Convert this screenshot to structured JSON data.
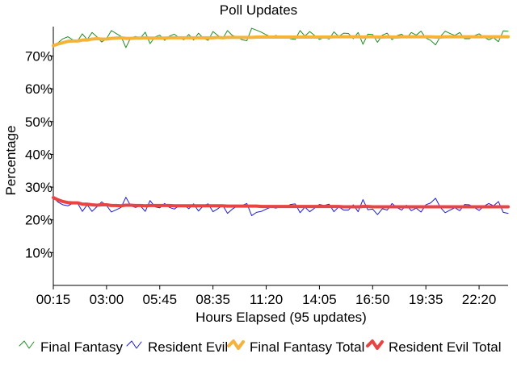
{
  "chart_data": {
    "type": "line",
    "title": "Poll Updates",
    "xlabel": "Hours Elapsed (95 updates)",
    "ylabel": "Percentage",
    "x_tick_labels": [
      "00:15",
      "03:00",
      "05:45",
      "08:35",
      "11:20",
      "14:05",
      "16:50",
      "19:35",
      "22:20"
    ],
    "y_tick_labels": [
      "10%",
      "20%",
      "30%",
      "40%",
      "50%",
      "60%",
      "70%"
    ],
    "ylim": [
      0,
      79
    ],
    "updates": 95,
    "grid": false,
    "legend_position": "bottom",
    "series": [
      {
        "name": "Final Fantasy",
        "color": "#228b22",
        "style": "thin",
        "values": [
          73.2,
          74.1,
          75.3,
          75.9,
          75.0,
          74.6,
          76.8,
          75.0,
          77.2,
          75.9,
          74.3,
          75.3,
          77.8,
          76.9,
          76.0,
          72.6,
          75.6,
          76.0,
          75.5,
          77.3,
          73.8,
          75.8,
          76.4,
          74.8,
          76.1,
          76.7,
          75.6,
          75.0,
          76.6,
          74.9,
          77.0,
          75.5,
          74.8,
          77.5,
          76.3,
          75.3,
          77.8,
          76.3,
          75.8,
          75.0,
          74.7,
          78.5,
          77.9,
          77.3,
          76.5,
          75.9,
          76.3,
          75.9,
          76.1,
          75.3,
          75.1,
          77.8,
          76.1,
          77.5,
          76.3,
          75.1,
          75.7,
          75.2,
          77.4,
          76.0,
          77.0,
          76.9,
          75.3,
          77.2,
          73.6,
          76.7,
          76.6,
          74.2,
          76.4,
          77.0,
          75.0,
          76.2,
          76.7,
          75.5,
          77.2,
          76.4,
          77.6,
          75.5,
          74.8,
          73.4,
          76.0,
          77.6,
          76.9,
          76.3,
          77.2,
          75.3,
          75.3,
          76.2,
          76.8,
          75.8,
          75.0,
          75.6,
          74.4,
          77.7,
          77.6
        ]
      },
      {
        "name": "Resident Evil",
        "color": "#1c1cd6",
        "style": "thin",
        "values": [
          26.8,
          25.4,
          24.6,
          24.3,
          25.0,
          25.1,
          22.6,
          24.6,
          22.6,
          24.0,
          25.5,
          24.4,
          22.4,
          23.1,
          23.8,
          26.9,
          24.3,
          23.8,
          24.3,
          22.6,
          25.9,
          24.0,
          23.7,
          25.0,
          23.8,
          23.3,
          24.3,
          24.6,
          23.4,
          24.9,
          22.7,
          24.3,
          24.9,
          22.5,
          23.4,
          24.5,
          22.0,
          23.3,
          24.2,
          24.4,
          25.0,
          21.3,
          22.3,
          22.6,
          23.3,
          23.9,
          23.6,
          24.0,
          23.8,
          24.7,
          24.9,
          22.2,
          23.9,
          22.5,
          23.6,
          24.7,
          24.4,
          24.8,
          22.5,
          24.0,
          23.0,
          23.0,
          24.6,
          22.5,
          26.2,
          23.1,
          23.3,
          21.6,
          23.4,
          23.0,
          25.0,
          23.8,
          23.0,
          24.5,
          22.8,
          23.6,
          22.4,
          24.6,
          25.2,
          26.6,
          23.8,
          22.2,
          23.0,
          23.7,
          22.8,
          24.7,
          24.6,
          23.8,
          22.9,
          24.2,
          25.0,
          24.3,
          25.6,
          22.3,
          22.0
        ]
      },
      {
        "name": "Final Fantasy Total",
        "color": "#f4b43c",
        "style": "thick",
        "values": [
          73.2,
          73.7,
          74.1,
          74.5,
          74.6,
          74.6,
          74.9,
          74.9,
          75.2,
          75.3,
          75.2,
          75.2,
          75.4,
          75.5,
          75.6,
          75.4,
          75.4,
          75.5,
          75.5,
          75.6,
          75.5,
          75.5,
          75.5,
          75.5,
          75.6,
          75.6,
          75.6,
          75.6,
          75.6,
          75.6,
          75.6,
          75.6,
          75.6,
          75.6,
          75.7,
          75.6,
          75.7,
          75.7,
          75.7,
          75.7,
          75.7,
          75.7,
          75.8,
          75.8,
          75.8,
          75.8,
          75.8,
          75.8,
          75.8,
          75.8,
          75.8,
          75.8,
          75.8,
          75.8,
          75.8,
          75.8,
          75.8,
          75.8,
          75.9,
          75.9,
          75.9,
          75.9,
          75.9,
          75.9,
          75.8,
          75.9,
          75.9,
          75.8,
          75.8,
          75.9,
          75.8,
          75.8,
          75.9,
          75.9,
          75.9,
          75.9,
          75.9,
          75.9,
          75.9,
          75.8,
          75.8,
          75.9,
          75.9,
          75.9,
          75.9,
          75.9,
          75.9,
          75.9,
          75.9,
          75.9,
          75.9,
          75.9,
          75.9,
          75.9,
          75.9
        ]
      },
      {
        "name": "Resident Evil Total",
        "color": "#e84444",
        "style": "thick",
        "values": [
          26.8,
          26.1,
          25.6,
          25.3,
          25.2,
          25.2,
          24.8,
          24.8,
          24.6,
          24.5,
          24.6,
          24.6,
          24.4,
          24.4,
          24.3,
          24.5,
          24.5,
          24.4,
          24.4,
          24.3,
          24.4,
          24.4,
          24.4,
          24.4,
          24.4,
          24.3,
          24.3,
          24.3,
          24.3,
          24.3,
          24.3,
          24.3,
          24.3,
          24.3,
          24.3,
          24.3,
          24.2,
          24.2,
          24.2,
          24.2,
          24.2,
          24.2,
          24.2,
          24.1,
          24.1,
          24.1,
          24.1,
          24.1,
          24.1,
          24.1,
          24.1,
          24.1,
          24.1,
          24.1,
          24.1,
          24.1,
          24.1,
          24.1,
          24.1,
          24.1,
          24.0,
          24.0,
          24.0,
          24.0,
          24.1,
          24.1,
          24.0,
          24.0,
          24.0,
          24.0,
          24.0,
          24.0,
          24.0,
          24.0,
          24.0,
          24.0,
          24.0,
          24.0,
          24.0,
          24.0,
          24.0,
          24.0,
          24.0,
          24.0,
          24.0,
          24.0,
          24.0,
          24.0,
          24.0,
          24.0,
          24.0,
          24.0,
          24.0,
          24.0,
          24.0
        ]
      }
    ]
  }
}
